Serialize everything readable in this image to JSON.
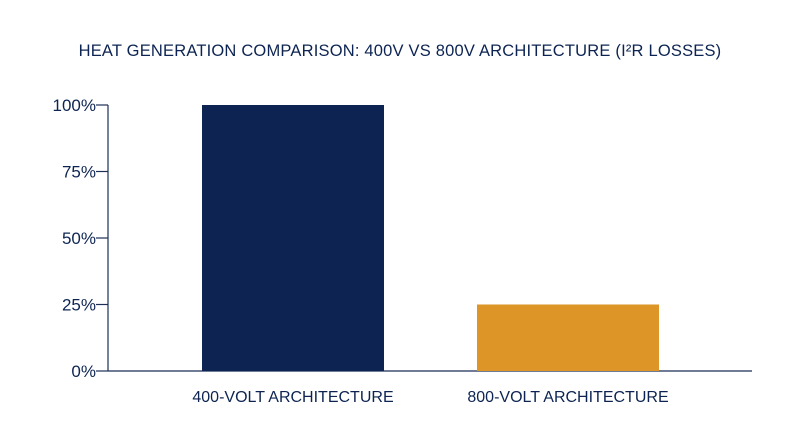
{
  "chart_data": {
    "type": "bar",
    "title": "HEAT GENERATION COMPARISON: 400V VS 800V ARCHITECTURE (I²R LOSSES)",
    "categories": [
      "400-VOLT ARCHITECTURE",
      "800-VOLT ARCHITECTURE"
    ],
    "values": [
      100,
      25
    ],
    "unit": "%",
    "ylim": [
      0,
      100
    ],
    "yticks": [
      0,
      25,
      50,
      75,
      100
    ],
    "ytick_labels": [
      "0%",
      "25%",
      "50%",
      "75%",
      "100%"
    ],
    "xlabel": "",
    "ylabel": "",
    "grid": false,
    "colors": [
      "#0d2452",
      "#de9527"
    ]
  }
}
